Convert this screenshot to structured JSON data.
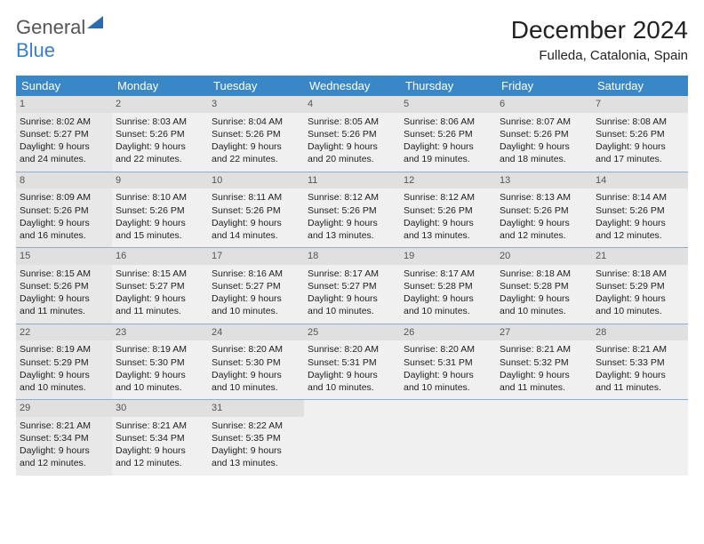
{
  "brand": {
    "part1": "General",
    "part2": "Blue"
  },
  "header": {
    "title": "December 2024",
    "location": "Fulleda, Catalonia, Spain"
  },
  "colors": {
    "header_bg": "#3a87c7",
    "header_text": "#ffffff",
    "cell_border": "#8aaed0",
    "cell_bg": "#f0f0f0",
    "daynum_bg": "#e0e0e0",
    "page_bg": "#ffffff",
    "text": "#222222",
    "brand_blue": "#3a7fc4"
  },
  "typography": {
    "title_fontsize": 28,
    "dayhead_fontsize": 13,
    "cell_fontsize": 10.5
  },
  "week_headers": [
    "Sunday",
    "Monday",
    "Tuesday",
    "Wednesday",
    "Thursday",
    "Friday",
    "Saturday"
  ],
  "weeks": [
    [
      {
        "n": "1",
        "sr": "Sunrise: 8:02 AM",
        "ss": "Sunset: 5:27 PM",
        "d1": "Daylight: 9 hours",
        "d2": "and 24 minutes."
      },
      {
        "n": "2",
        "sr": "Sunrise: 8:03 AM",
        "ss": "Sunset: 5:26 PM",
        "d1": "Daylight: 9 hours",
        "d2": "and 22 minutes."
      },
      {
        "n": "3",
        "sr": "Sunrise: 8:04 AM",
        "ss": "Sunset: 5:26 PM",
        "d1": "Daylight: 9 hours",
        "d2": "and 22 minutes."
      },
      {
        "n": "4",
        "sr": "Sunrise: 8:05 AM",
        "ss": "Sunset: 5:26 PM",
        "d1": "Daylight: 9 hours",
        "d2": "and 20 minutes."
      },
      {
        "n": "5",
        "sr": "Sunrise: 8:06 AM",
        "ss": "Sunset: 5:26 PM",
        "d1": "Daylight: 9 hours",
        "d2": "and 19 minutes."
      },
      {
        "n": "6",
        "sr": "Sunrise: 8:07 AM",
        "ss": "Sunset: 5:26 PM",
        "d1": "Daylight: 9 hours",
        "d2": "and 18 minutes."
      },
      {
        "n": "7",
        "sr": "Sunrise: 8:08 AM",
        "ss": "Sunset: 5:26 PM",
        "d1": "Daylight: 9 hours",
        "d2": "and 17 minutes."
      }
    ],
    [
      {
        "n": "8",
        "sr": "Sunrise: 8:09 AM",
        "ss": "Sunset: 5:26 PM",
        "d1": "Daylight: 9 hours",
        "d2": "and 16 minutes."
      },
      {
        "n": "9",
        "sr": "Sunrise: 8:10 AM",
        "ss": "Sunset: 5:26 PM",
        "d1": "Daylight: 9 hours",
        "d2": "and 15 minutes."
      },
      {
        "n": "10",
        "sr": "Sunrise: 8:11 AM",
        "ss": "Sunset: 5:26 PM",
        "d1": "Daylight: 9 hours",
        "d2": "and 14 minutes."
      },
      {
        "n": "11",
        "sr": "Sunrise: 8:12 AM",
        "ss": "Sunset: 5:26 PM",
        "d1": "Daylight: 9 hours",
        "d2": "and 13 minutes."
      },
      {
        "n": "12",
        "sr": "Sunrise: 8:12 AM",
        "ss": "Sunset: 5:26 PM",
        "d1": "Daylight: 9 hours",
        "d2": "and 13 minutes."
      },
      {
        "n": "13",
        "sr": "Sunrise: 8:13 AM",
        "ss": "Sunset: 5:26 PM",
        "d1": "Daylight: 9 hours",
        "d2": "and 12 minutes."
      },
      {
        "n": "14",
        "sr": "Sunrise: 8:14 AM",
        "ss": "Sunset: 5:26 PM",
        "d1": "Daylight: 9 hours",
        "d2": "and 12 minutes."
      }
    ],
    [
      {
        "n": "15",
        "sr": "Sunrise: 8:15 AM",
        "ss": "Sunset: 5:26 PM",
        "d1": "Daylight: 9 hours",
        "d2": "and 11 minutes."
      },
      {
        "n": "16",
        "sr": "Sunrise: 8:15 AM",
        "ss": "Sunset: 5:27 PM",
        "d1": "Daylight: 9 hours",
        "d2": "and 11 minutes."
      },
      {
        "n": "17",
        "sr": "Sunrise: 8:16 AM",
        "ss": "Sunset: 5:27 PM",
        "d1": "Daylight: 9 hours",
        "d2": "and 10 minutes."
      },
      {
        "n": "18",
        "sr": "Sunrise: 8:17 AM",
        "ss": "Sunset: 5:27 PM",
        "d1": "Daylight: 9 hours",
        "d2": "and 10 minutes."
      },
      {
        "n": "19",
        "sr": "Sunrise: 8:17 AM",
        "ss": "Sunset: 5:28 PM",
        "d1": "Daylight: 9 hours",
        "d2": "and 10 minutes."
      },
      {
        "n": "20",
        "sr": "Sunrise: 8:18 AM",
        "ss": "Sunset: 5:28 PM",
        "d1": "Daylight: 9 hours",
        "d2": "and 10 minutes."
      },
      {
        "n": "21",
        "sr": "Sunrise: 8:18 AM",
        "ss": "Sunset: 5:29 PM",
        "d1": "Daylight: 9 hours",
        "d2": "and 10 minutes."
      }
    ],
    [
      {
        "n": "22",
        "sr": "Sunrise: 8:19 AM",
        "ss": "Sunset: 5:29 PM",
        "d1": "Daylight: 9 hours",
        "d2": "and 10 minutes."
      },
      {
        "n": "23",
        "sr": "Sunrise: 8:19 AM",
        "ss": "Sunset: 5:30 PM",
        "d1": "Daylight: 9 hours",
        "d2": "and 10 minutes."
      },
      {
        "n": "24",
        "sr": "Sunrise: 8:20 AM",
        "ss": "Sunset: 5:30 PM",
        "d1": "Daylight: 9 hours",
        "d2": "and 10 minutes."
      },
      {
        "n": "25",
        "sr": "Sunrise: 8:20 AM",
        "ss": "Sunset: 5:31 PM",
        "d1": "Daylight: 9 hours",
        "d2": "and 10 minutes."
      },
      {
        "n": "26",
        "sr": "Sunrise: 8:20 AM",
        "ss": "Sunset: 5:31 PM",
        "d1": "Daylight: 9 hours",
        "d2": "and 10 minutes."
      },
      {
        "n": "27",
        "sr": "Sunrise: 8:21 AM",
        "ss": "Sunset: 5:32 PM",
        "d1": "Daylight: 9 hours",
        "d2": "and 11 minutes."
      },
      {
        "n": "28",
        "sr": "Sunrise: 8:21 AM",
        "ss": "Sunset: 5:33 PM",
        "d1": "Daylight: 9 hours",
        "d2": "and 11 minutes."
      }
    ],
    [
      {
        "n": "29",
        "sr": "Sunrise: 8:21 AM",
        "ss": "Sunset: 5:34 PM",
        "d1": "Daylight: 9 hours",
        "d2": "and 12 minutes."
      },
      {
        "n": "30",
        "sr": "Sunrise: 8:21 AM",
        "ss": "Sunset: 5:34 PM",
        "d1": "Daylight: 9 hours",
        "d2": "and 12 minutes."
      },
      {
        "n": "31",
        "sr": "Sunrise: 8:22 AM",
        "ss": "Sunset: 5:35 PM",
        "d1": "Daylight: 9 hours",
        "d2": "and 13 minutes."
      },
      null,
      null,
      null,
      null
    ]
  ]
}
